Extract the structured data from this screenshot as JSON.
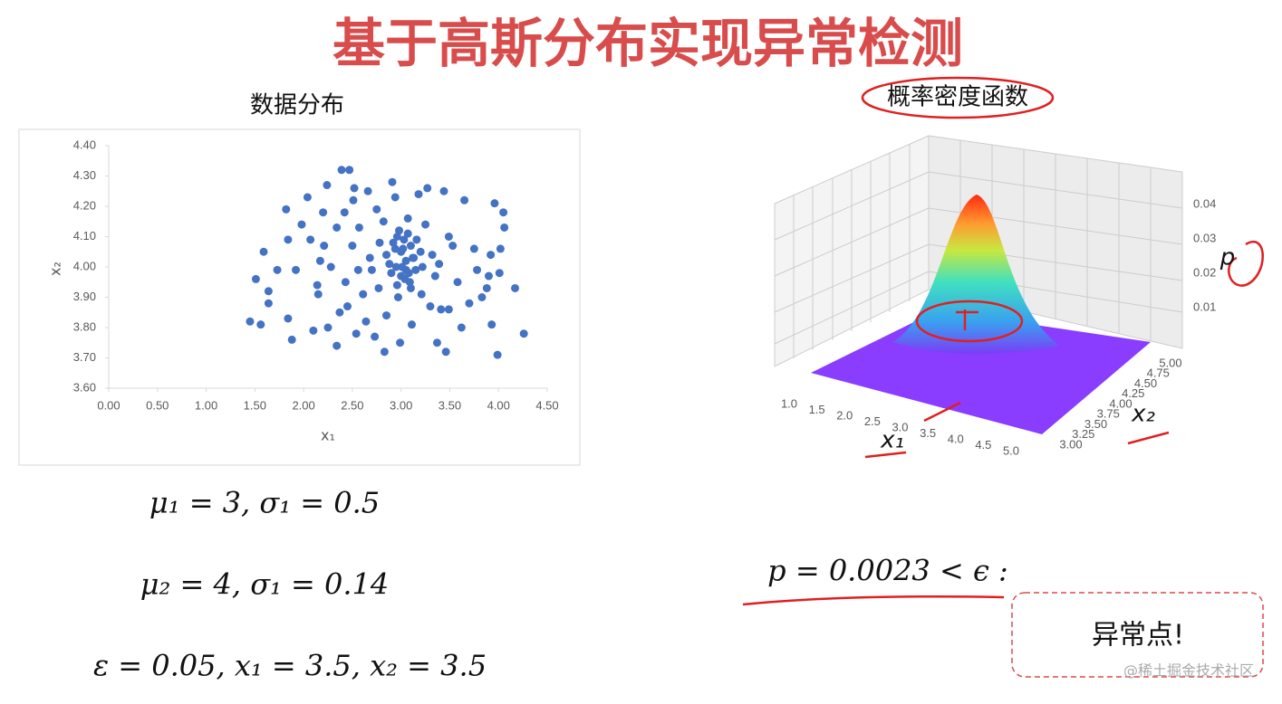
{
  "header": {
    "title": "基于高斯分布实现异常检测"
  },
  "chart_data": [
    {
      "type": "scatter",
      "title": "数据分布",
      "xlabel": "x₁",
      "ylabel": "x₂",
      "color": "#4472c4",
      "xlim": [
        0,
        4.5
      ],
      "ylim": [
        3.6,
        4.4
      ],
      "xticks": [
        {
          "value": 0,
          "label": "0.00"
        },
        {
          "value": 0.5,
          "label": "0.50"
        },
        {
          "value": 1,
          "label": "1.00"
        },
        {
          "value": 1.5,
          "label": "1.50"
        },
        {
          "value": 2,
          "label": "2.00"
        },
        {
          "value": 2.5,
          "label": "2.50"
        },
        {
          "value": 3,
          "label": "3.00"
        },
        {
          "value": 3.5,
          "label": "3.50"
        },
        {
          "value": 4,
          "label": "4.00"
        },
        {
          "value": 4.5,
          "label": "4.50"
        }
      ],
      "yticks": [
        {
          "value": 3.6,
          "label": "3.60"
        },
        {
          "value": 3.7,
          "label": "3.70"
        },
        {
          "value": 3.8,
          "label": "3.80"
        },
        {
          "value": 3.9,
          "label": "3.90"
        },
        {
          "value": 4,
          "label": "4.00"
        },
        {
          "value": 4.1,
          "label": "4.10"
        },
        {
          "value": 4.2,
          "label": "4.20"
        },
        {
          "value": 4.3,
          "label": "4.30"
        },
        {
          "value": 4.4,
          "label": "4.40"
        }
      ],
      "x": [
        1.45,
        1.56,
        1.59,
        1.51,
        1.64,
        1.64,
        1.73,
        1.82,
        1.84,
        1.84,
        1.88,
        1.92,
        1.98,
        2.04,
        2.07,
        2.1,
        2.14,
        2.15,
        2.17,
        2.2,
        2.21,
        2.24,
        2.25,
        2.28,
        2.34,
        2.34,
        2.37,
        2.39,
        2.42,
        2.43,
        2.45,
        2.47,
        2.5,
        2.51,
        2.52,
        2.54,
        2.56,
        2.57,
        2.61,
        2.64,
        2.66,
        2.68,
        2.7,
        2.73,
        2.75,
        2.77,
        2.78,
        2.82,
        2.83,
        2.85,
        2.88,
        2.91,
        2.94,
        2.96,
        2.97,
        2.99,
        3.02,
        3.05,
        3.07,
        3.09,
        3.11,
        3.13,
        3.16,
        3.18,
        3.21,
        3.22,
        3.25,
        3.27,
        3.3,
        3.32,
        3.35,
        3.37,
        3.39,
        3.41,
        3.44,
        3.46,
        3.49,
        3.49,
        3.53,
        3.58,
        3.62,
        3.65,
        3.7,
        3.75,
        3.78,
        3.83,
        3.88,
        3.9,
        3.92,
        3.93,
        3.96,
        3.99,
        4.01,
        4.02,
        4.05,
        4.06,
        4.17,
        4.26,
        3.0,
        3.05,
        2.95,
        3.1,
        3.0,
        2.92,
        3.08,
        2.98,
        3.12,
        3.03,
        2.9,
        3.15,
        3.07,
        2.96,
        3.01,
        3.2,
        2.85,
        3.1,
        3.04,
        2.94
      ],
      "y": [
        3.82,
        3.81,
        4.05,
        3.96,
        3.92,
        3.88,
        3.99,
        4.19,
        4.09,
        3.83,
        3.76,
        3.99,
        4.14,
        4.23,
        4.09,
        3.79,
        3.94,
        3.91,
        4.02,
        4.18,
        4.07,
        4.27,
        3.8,
        4.0,
        4.13,
        3.74,
        3.85,
        4.32,
        4.18,
        3.95,
        3.87,
        4.32,
        4.07,
        4.22,
        4.26,
        3.78,
        3.99,
        4.13,
        3.91,
        3.82,
        4.25,
        4.03,
        3.99,
        3.77,
        4.19,
        3.93,
        4.08,
        4.15,
        3.72,
        3.84,
        4.01,
        4.28,
        4.23,
        4.1,
        3.9,
        3.75,
        4.06,
        3.99,
        4.16,
        3.95,
        3.81,
        4.03,
        4.09,
        4.24,
        3.91,
        4.0,
        4.14,
        4.26,
        3.87,
        4.04,
        3.97,
        3.75,
        4.01,
        3.86,
        4.25,
        3.72,
        4.1,
        3.86,
        4.07,
        3.95,
        3.8,
        4.22,
        3.88,
        4.06,
        3.99,
        3.9,
        3.93,
        3.97,
        4.04,
        3.81,
        4.21,
        3.71,
        3.98,
        4.06,
        4.18,
        4.13,
        3.93,
        3.78,
        4.05,
        4.02,
        4.0,
        4.07,
        3.97,
        4.08,
        3.98,
        4.12,
        4.03,
        4.09,
        3.98,
        3.99,
        4.11,
        3.94,
        4.0,
        4.05,
        4.04,
        3.93,
        3.96,
        4.06
      ]
    },
    {
      "type": "surface",
      "title": "概率密度函数",
      "xlabel": "x₁",
      "ylabel": "x₂",
      "zlabel": "p",
      "xticks": [
        {
          "value": 1,
          "label": "1.0"
        },
        1.5,
        {
          "value": 2,
          "label": "2.0"
        },
        2.5,
        {
          "value": 3,
          "label": "3.0"
        },
        3.5,
        {
          "value": 4,
          "label": "4.0"
        },
        4.5,
        {
          "value": 5,
          "label": "5.0"
        }
      ],
      "yticks": [
        {
          "value": 3,
          "label": "3.00"
        },
        3.25,
        {
          "value": 3.5,
          "label": "3.50"
        },
        3.75,
        {
          "value": 4,
          "label": "4.00"
        },
        4.25,
        {
          "value": 4.5,
          "label": "4.50"
        },
        4.75,
        {
          "value": 5,
          "label": "5.00"
        }
      ],
      "zticks": [
        0.01,
        0.02,
        0.03,
        0.04
      ]
    }
  ],
  "formulas": [
    "μ₁ = 3, σ₁ = 0.5",
    "μ₂ = 4, σ₁ = 0.14",
    "ε = 0.05, x₁ = 3.5, x₂ = 3.5"
  ],
  "result": {
    "formula": "p = 0.0023 < ϵ :",
    "label": "异常点!"
  },
  "watermark": "@稀土掘金技术社区"
}
